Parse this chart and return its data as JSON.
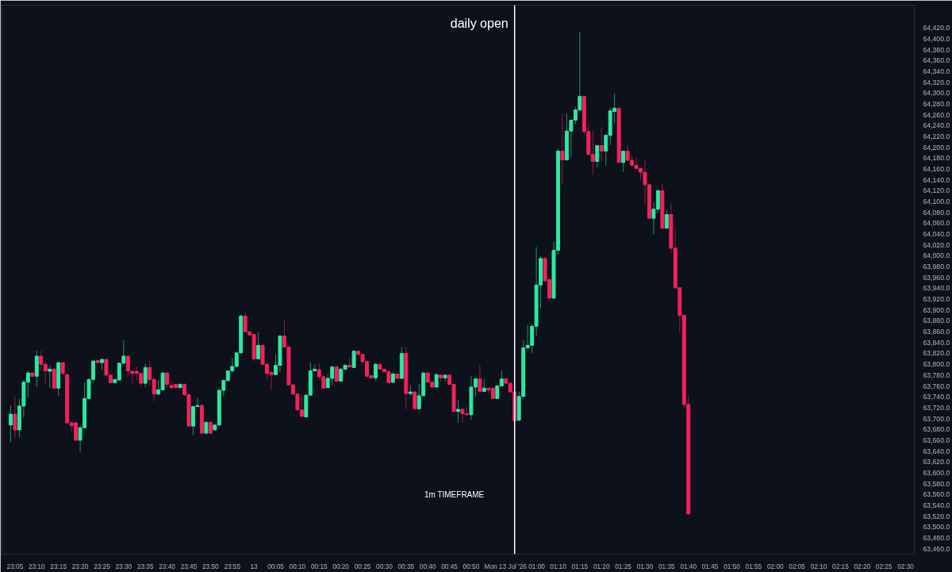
{
  "chart_data": {
    "type": "candlestick",
    "x": [
      "2026-07-12T23:04",
      "2026-07-12T23:05",
      "2026-07-12T23:06",
      "2026-07-12T23:07",
      "2026-07-12T23:08",
      "2026-07-12T23:09",
      "2026-07-12T23:10",
      "2026-07-12T23:11",
      "2026-07-12T23:12",
      "2026-07-12T23:13",
      "2026-07-12T23:14",
      "2026-07-12T23:15",
      "2026-07-12T23:16",
      "2026-07-12T23:17",
      "2026-07-12T23:18",
      "2026-07-12T23:19",
      "2026-07-12T23:20",
      "2026-07-12T23:21",
      "2026-07-12T23:22",
      "2026-07-12T23:23",
      "2026-07-12T23:24",
      "2026-07-12T23:25",
      "2026-07-12T23:26",
      "2026-07-12T23:27",
      "2026-07-12T23:28",
      "2026-07-12T23:29",
      "2026-07-12T23:30",
      "2026-07-12T23:31",
      "2026-07-12T23:32",
      "2026-07-12T23:33",
      "2026-07-12T23:34",
      "2026-07-12T23:35",
      "2026-07-12T23:36",
      "2026-07-12T23:37",
      "2026-07-12T23:38",
      "2026-07-12T23:39",
      "2026-07-12T23:40",
      "2026-07-12T23:41",
      "2026-07-12T23:42",
      "2026-07-12T23:43",
      "2026-07-12T23:44",
      "2026-07-12T23:45",
      "2026-07-12T23:46",
      "2026-07-12T23:47",
      "2026-07-12T23:48",
      "2026-07-12T23:49",
      "2026-07-12T23:50",
      "2026-07-12T23:51",
      "2026-07-12T23:52",
      "2026-07-12T23:53",
      "2026-07-12T23:54",
      "2026-07-12T23:55",
      "2026-07-12T23:56",
      "2026-07-12T23:57",
      "2026-07-12T23:58",
      "2026-07-12T23:59",
      "2026-07-13T00:00",
      "2026-07-13T00:01",
      "2026-07-13T00:02",
      "2026-07-13T00:03",
      "2026-07-13T00:04",
      "2026-07-13T00:05",
      "2026-07-13T00:06",
      "2026-07-13T00:07",
      "2026-07-13T00:08",
      "2026-07-13T00:09",
      "2026-07-13T00:10",
      "2026-07-13T00:11",
      "2026-07-13T00:12",
      "2026-07-13T00:13",
      "2026-07-13T00:14",
      "2026-07-13T00:15",
      "2026-07-13T00:16",
      "2026-07-13T00:17",
      "2026-07-13T00:18",
      "2026-07-13T00:19",
      "2026-07-13T00:20",
      "2026-07-13T00:21",
      "2026-07-13T00:22",
      "2026-07-13T00:23",
      "2026-07-13T00:24",
      "2026-07-13T00:25",
      "2026-07-13T00:26",
      "2026-07-13T00:27",
      "2026-07-13T00:28",
      "2026-07-13T00:29",
      "2026-07-13T00:30",
      "2026-07-13T00:31",
      "2026-07-13T00:32",
      "2026-07-13T00:33",
      "2026-07-13T00:34",
      "2026-07-13T00:35",
      "2026-07-13T00:36",
      "2026-07-13T00:37",
      "2026-07-13T00:38",
      "2026-07-13T00:39",
      "2026-07-13T00:40",
      "2026-07-13T00:41",
      "2026-07-13T00:42",
      "2026-07-13T00:43",
      "2026-07-13T00:44",
      "2026-07-13T00:45",
      "2026-07-13T00:46",
      "2026-07-13T00:47",
      "2026-07-13T00:48",
      "2026-07-13T00:49",
      "2026-07-13T00:50",
      "2026-07-13T00:51",
      "2026-07-13T00:52",
      "2026-07-13T00:53",
      "2026-07-13T00:54",
      "2026-07-13T00:55",
      "2026-07-13T00:56",
      "2026-07-13T00:57",
      "2026-07-13T00:58",
      "2026-07-13T00:59",
      "2026-07-13T01:00",
      "2026-07-13T01:01",
      "2026-07-13T01:02",
      "2026-07-13T01:03",
      "2026-07-13T01:04",
      "2026-07-13T01:05",
      "2026-07-13T01:06",
      "2026-07-13T01:07",
      "2026-07-13T01:08",
      "2026-07-13T01:09",
      "2026-07-13T01:10",
      "2026-07-13T01:11",
      "2026-07-13T01:12",
      "2026-07-13T01:13",
      "2026-07-13T01:14",
      "2026-07-13T01:15",
      "2026-07-13T01:16",
      "2026-07-13T01:17",
      "2026-07-13T01:18",
      "2026-07-13T01:19",
      "2026-07-13T01:20",
      "2026-07-13T01:21",
      "2026-07-13T01:22",
      "2026-07-13T01:23",
      "2026-07-13T01:24",
      "2026-07-13T01:25",
      "2026-07-13T01:26",
      "2026-07-13T01:27",
      "2026-07-13T01:28",
      "2026-07-13T01:29",
      "2026-07-13T01:30",
      "2026-07-13T01:31",
      "2026-07-13T01:32",
      "2026-07-13T01:33",
      "2026-07-13T01:34",
      "2026-07-13T01:35",
      "2026-07-13T01:36",
      "2026-07-13T01:37",
      "2026-07-13T01:38",
      "2026-07-13T01:39",
      "2026-07-13T01:40"
    ],
    "ohlc": [
      [
        63688,
        63724,
        63656,
        63708
      ],
      [
        63708,
        63741,
        63663,
        63679
      ],
      [
        63679,
        63736,
        63665,
        63723
      ],
      [
        63723,
        63771,
        63702,
        63767
      ],
      [
        63767,
        63788,
        63739,
        63784
      ],
      [
        63784,
        63785,
        63776,
        63778
      ],
      [
        63778,
        63825,
        63758,
        63815
      ],
      [
        63815,
        63825,
        63788,
        63800
      ],
      [
        63800,
        63803,
        63763,
        63788
      ],
      [
        63787,
        63798,
        63756,
        63791
      ],
      [
        63791,
        63793,
        63755,
        63756
      ],
      [
        63756,
        63804,
        63741,
        63803
      ],
      [
        63803,
        63804,
        63780,
        63783
      ],
      [
        63781,
        63783,
        63691,
        63692
      ],
      [
        63692,
        63695,
        63675,
        63687
      ],
      [
        63692,
        63693,
        63659,
        63660
      ],
      [
        63660,
        63687,
        63638,
        63683
      ],
      [
        63683,
        63766,
        63682,
        63737
      ],
      [
        63737,
        63773,
        63736,
        63772
      ],
      [
        63772,
        63807,
        63766,
        63806
      ],
      [
        63807,
        63808,
        63802,
        63803
      ],
      [
        63803,
        63810,
        63790,
        63809
      ],
      [
        63809,
        63810,
        63778,
        63780
      ],
      [
        63780,
        63781,
        63765,
        63766
      ],
      [
        63766,
        63773,
        63765,
        63772
      ],
      [
        63771,
        63803,
        63770,
        63802
      ],
      [
        63802,
        63844,
        63800,
        63815
      ],
      [
        63815,
        63816,
        63776,
        63788
      ],
      [
        63787,
        63787,
        63763,
        63783
      ],
      [
        63787,
        63796,
        63771,
        63783
      ],
      [
        63783,
        63785,
        63761,
        63765
      ],
      [
        63765,
        63801,
        63758,
        63794
      ],
      [
        63794,
        63806,
        63761,
        63772
      ],
      [
        63772,
        63775,
        63732,
        63745
      ],
      [
        63745,
        63771,
        63744,
        63753
      ],
      [
        63753,
        63785,
        63751,
        63784
      ],
      [
        63784,
        63785,
        63756,
        63763
      ],
      [
        63761,
        63767,
        63753,
        63757
      ],
      [
        63763,
        63764,
        63755,
        63757
      ],
      [
        63757,
        63765,
        63755,
        63763
      ],
      [
        63763,
        63765,
        63742,
        63744
      ],
      [
        63744,
        63746,
        63684,
        63686
      ],
      [
        63686,
        63723,
        63669,
        63722
      ],
      [
        63722,
        63739,
        63721,
        63724
      ],
      [
        63724,
        63727,
        63670,
        63673
      ],
      [
        63673,
        63695,
        63671,
        63693
      ],
      [
        63693,
        63695,
        63672,
        63673
      ],
      [
        63679,
        63689,
        63678,
        63688
      ],
      [
        63688,
        63756,
        63687,
        63752
      ],
      [
        63752,
        63772,
        63741,
        63770
      ],
      [
        63770,
        63789,
        63768,
        63788
      ],
      [
        63788,
        63812,
        63785,
        63796
      ],
      [
        63796,
        63822,
        63795,
        63821
      ],
      [
        63821,
        63892,
        63820,
        63889
      ],
      [
        63889,
        63896,
        63859,
        63860
      ],
      [
        63860,
        63861,
        63853,
        63854
      ],
      [
        63855,
        63856,
        63805,
        63810
      ],
      [
        63810,
        63860,
        63809,
        63835
      ],
      [
        63835,
        63836,
        63798,
        63800
      ],
      [
        63800,
        63803,
        63771,
        63783
      ],
      [
        63785,
        63788,
        63753,
        63781
      ],
      [
        63781,
        63819,
        63780,
        63798
      ],
      [
        63798,
        63854,
        63785,
        63852
      ],
      [
        63852,
        63883,
        63829,
        63832
      ],
      [
        63832,
        63833,
        63761,
        63762
      ],
      [
        63762,
        63763,
        63744,
        63745
      ],
      [
        63745,
        63746,
        63715,
        63716
      ],
      [
        63716,
        63745,
        63703,
        63704
      ],
      [
        63703,
        63745,
        63702,
        63743
      ],
      [
        63743,
        63804,
        63743,
        63788
      ],
      [
        63788,
        63800,
        63787,
        63791
      ],
      [
        63790,
        63802,
        63771,
        63777
      ],
      [
        63777,
        63780,
        63755,
        63756
      ],
      [
        63757,
        63781,
        63756,
        63774
      ],
      [
        63774,
        63798,
        63762,
        63795
      ],
      [
        63795,
        63798,
        63767,
        63769
      ],
      [
        63769,
        63793,
        63768,
        63791
      ],
      [
        63791,
        63801,
        63790,
        63798
      ],
      [
        63798,
        63811,
        63794,
        63795
      ],
      [
        63794,
        63826,
        63793,
        63824
      ],
      [
        63824,
        63826,
        63817,
        63818
      ],
      [
        63818,
        63820,
        63798,
        63805
      ],
      [
        63805,
        63807,
        63776,
        63778
      ],
      [
        63779,
        63780,
        63774,
        63775
      ],
      [
        63775,
        63802,
        63770,
        63800
      ],
      [
        63800,
        63802,
        63790,
        63791
      ],
      [
        63791,
        63792,
        63785,
        63786
      ],
      [
        63786,
        63790,
        63765,
        63766
      ],
      [
        63767,
        63785,
        63765,
        63782
      ],
      [
        63782,
        63783,
        63773,
        63774
      ],
      [
        63774,
        63832,
        63773,
        63820
      ],
      [
        63820,
        63832,
        63717,
        63746
      ],
      [
        63746,
        63761,
        63741,
        63749
      ],
      [
        63749,
        63751,
        63717,
        63718
      ],
      [
        63718,
        63763,
        63717,
        63742
      ],
      [
        63742,
        63786,
        63741,
        63784
      ],
      [
        63784,
        63786,
        63765,
        63767
      ],
      [
        63767,
        63769,
        63757,
        63758
      ],
      [
        63758,
        63783,
        63757,
        63781
      ],
      [
        63780,
        63781,
        63768,
        63775
      ],
      [
        63775,
        63781,
        63768,
        63780
      ],
      [
        63780,
        63781,
        63762,
        63763
      ],
      [
        63763,
        63765,
        63712,
        63713
      ],
      [
        63713,
        63734,
        63692,
        63717
      ],
      [
        63717,
        63719,
        63692,
        63709
      ],
      [
        63709,
        63722,
        63706,
        63707
      ],
      [
        63707,
        63778,
        63698,
        63758
      ],
      [
        63758,
        63775,
        63741,
        63773
      ],
      [
        63773,
        63798,
        63749,
        63750
      ],
      [
        63750,
        63773,
        63749,
        63756
      ],
      [
        63756,
        63756,
        63747,
        63753
      ],
      [
        63756,
        63757,
        63735,
        63737
      ],
      [
        63737,
        63762,
        63736,
        63760
      ],
      [
        63760,
        63789,
        63759,
        63773
      ],
      [
        63773,
        63775,
        63764,
        63765
      ],
      [
        63765,
        63767,
        63748,
        63749
      ],
      [
        63749,
        63750,
        63690,
        63696
      ],
      [
        63697,
        63750,
        63695,
        63741
      ],
      [
        63741,
        63844,
        63736,
        63830
      ],
      [
        63830,
        63873,
        63829,
        63835
      ],
      [
        63835,
        63874,
        63821,
        63870
      ],
      [
        63870,
        64016,
        63852,
        63946
      ],
      [
        63946,
        63999,
        63903,
        63995
      ],
      [
        63995,
        63998,
        63951,
        63954
      ],
      [
        63956,
        63958,
        63917,
        63922
      ],
      [
        63922,
        64026,
        63920,
        64010
      ],
      [
        64010,
        64197,
        64002,
        64193
      ],
      [
        64193,
        64261,
        64131,
        64177
      ],
      [
        64177,
        64262,
        64175,
        64230
      ],
      [
        64230,
        64251,
        64182,
        64250
      ],
      [
        64250,
        64275,
        64242,
        64269
      ],
      [
        64269,
        64413,
        64268,
        64294
      ],
      [
        64294,
        64295,
        64224,
        64229
      ],
      [
        64229,
        64242,
        64185,
        64187
      ],
      [
        64187,
        64231,
        64149,
        64174
      ],
      [
        64174,
        64204,
        64163,
        64203
      ],
      [
        64203,
        64237,
        64174,
        64193
      ],
      [
        64193,
        64224,
        64165,
        64222
      ],
      [
        64222,
        64273,
        64204,
        64267
      ],
      [
        64266,
        64300,
        64244,
        64272
      ],
      [
        64272,
        64273,
        64171,
        64172
      ],
      [
        64172,
        64194,
        64155,
        64193
      ],
      [
        64193,
        64204,
        64175,
        64176
      ],
      [
        64176,
        64185,
        64165,
        64167
      ],
      [
        64167,
        64181,
        64160,
        64161
      ],
      [
        64161,
        64163,
        64141,
        64154
      ],
      [
        64154,
        64178,
        64094,
        64131
      ],
      [
        64131,
        64132,
        64068,
        64069
      ],
      [
        64069,
        64099,
        64039,
        64086
      ],
      [
        64086,
        64121,
        64079,
        64120
      ],
      [
        64120,
        64133,
        64049,
        64051
      ],
      [
        64051,
        64084,
        64049,
        64076
      ],
      [
        64076,
        64097,
        64005,
        64014
      ],
      [
        64014,
        64049,
        63939,
        63941
      ],
      [
        63941,
        63942,
        63858,
        63890
      ],
      [
        63890,
        63892,
        63721,
        63726
      ],
      [
        63726,
        63742,
        63523,
        63524
      ]
    ],
    "xlim": [
      "2026-07-12T23:02",
      "2026-07-13T02:32"
    ],
    "xticks": [
      {
        "value": "2026-07-12T23:05",
        "label": "23:05"
      },
      {
        "value": "2026-07-12T23:10",
        "label": "23:10"
      },
      {
        "value": "2026-07-12T23:15",
        "label": "23:15"
      },
      {
        "value": "2026-07-12T23:20",
        "label": "23:20"
      },
      {
        "value": "2026-07-12T23:25",
        "label": "23:25"
      },
      {
        "value": "2026-07-12T23:30",
        "label": "23:30"
      },
      {
        "value": "2026-07-12T23:35",
        "label": "23:35"
      },
      {
        "value": "2026-07-12T23:40",
        "label": "23:40"
      },
      {
        "value": "2026-07-12T23:45",
        "label": "23:45"
      },
      {
        "value": "2026-07-12T23:50",
        "label": "23:50"
      },
      {
        "value": "2026-07-12T23:55",
        "label": "23:55"
      },
      {
        "value": "2026-07-13T00:00",
        "label": "13"
      },
      {
        "value": "2026-07-13T00:05",
        "label": "00:05"
      },
      {
        "value": "2026-07-13T00:10",
        "label": "00:10"
      },
      {
        "value": "2026-07-13T00:15",
        "label": "00:15"
      },
      {
        "value": "2026-07-13T00:20",
        "label": "00:20"
      },
      {
        "value": "2026-07-13T00:25",
        "label": "00:25"
      },
      {
        "value": "2026-07-13T00:30",
        "label": "00:30"
      },
      {
        "value": "2026-07-13T00:35",
        "label": "00:35"
      },
      {
        "value": "2026-07-13T00:40",
        "label": "00:40"
      },
      {
        "value": "2026-07-13T00:45",
        "label": "00:45"
      },
      {
        "value": "2026-07-13T00:50",
        "label": "00:50"
      },
      {
        "value": "2026-07-13T01:00",
        "label": "Mon 13 Jul '26 01:00"
      },
      {
        "value": "2026-07-13T01:10",
        "label": "01:10"
      },
      {
        "value": "2026-07-13T01:15",
        "label": "01:15"
      },
      {
        "value": "2026-07-13T01:20",
        "label": "01:20"
      },
      {
        "value": "2026-07-13T01:25",
        "label": "01:25"
      },
      {
        "value": "2026-07-13T01:30",
        "label": "01:30"
      },
      {
        "value": "2026-07-13T01:35",
        "label": "01:35"
      },
      {
        "value": "2026-07-13T01:40",
        "label": "01:40"
      },
      {
        "value": "2026-07-13T01:45",
        "label": "01:45"
      },
      {
        "value": "2026-07-13T01:50",
        "label": "01:50"
      },
      {
        "value": "2026-07-13T01:55",
        "label": "01:55"
      },
      {
        "value": "2026-07-13T02:00",
        "label": "02:00"
      },
      {
        "value": "2026-07-13T02:05",
        "label": "02:05"
      },
      {
        "value": "2026-07-13T02:10",
        "label": "02:10"
      },
      {
        "value": "2026-07-13T02:15",
        "label": "02:15"
      },
      {
        "value": "2026-07-13T02:20",
        "label": "02:20"
      },
      {
        "value": "2026-07-13T02:25",
        "label": "02:25"
      },
      {
        "value": "2026-07-13T02:30",
        "label": "02:30"
      }
    ],
    "ylim": [
      63450,
      64462
    ],
    "yticks": [
      {
        "value": 63460,
        "label": "63,460.0"
      },
      {
        "value": 63480,
        "label": "63,480.0"
      },
      {
        "value": 63500,
        "label": "63,500.0"
      },
      {
        "value": 63520,
        "label": "63,520.0"
      },
      {
        "value": 63540,
        "label": "63,540.0"
      },
      {
        "value": 63560,
        "label": "63,560.0"
      },
      {
        "value": 63580,
        "label": "63,580.0"
      },
      {
        "value": 63600,
        "label": "63,600.0"
      },
      {
        "value": 63620,
        "label": "63,620.0"
      },
      {
        "value": 63640,
        "label": "63,640.0"
      },
      {
        "value": 63660,
        "label": "63,660.0"
      },
      {
        "value": 63680,
        "label": "63,680.0"
      },
      {
        "value": 63700,
        "label": "63,700.0"
      },
      {
        "value": 63720,
        "label": "63,720.0"
      },
      {
        "value": 63740,
        "label": "63,740.0"
      },
      {
        "value": 63760,
        "label": "63,760.0"
      },
      {
        "value": 63780,
        "label": "63,780.0"
      },
      {
        "value": 63800,
        "label": "63,800.0"
      },
      {
        "value": 63820,
        "label": "63,820.0"
      },
      {
        "value": 63840,
        "label": "63,840.0"
      },
      {
        "value": 63860,
        "label": "63,860.0"
      },
      {
        "value": 63880,
        "label": "63,880.0"
      },
      {
        "value": 63900,
        "label": "63,900.0"
      },
      {
        "value": 63920,
        "label": "63,920.0"
      },
      {
        "value": 63940,
        "label": "63,940.0"
      },
      {
        "value": 63960,
        "label": "63,960.0"
      },
      {
        "value": 63980,
        "label": "63,980.0"
      },
      {
        "value": 64000,
        "label": "64,000.0"
      },
      {
        "value": 64020,
        "label": "64,020.0"
      },
      {
        "value": 64040,
        "label": "64,040.0"
      },
      {
        "value": 64060,
        "label": "64,060.0"
      },
      {
        "value": 64080,
        "label": "64,080.0"
      },
      {
        "value": 64100,
        "label": "64,100.0"
      },
      {
        "value": 64120,
        "label": "64,120.0"
      },
      {
        "value": 64140,
        "label": "64,140.0"
      },
      {
        "value": 64160,
        "label": "64,160.0"
      },
      {
        "value": 64180,
        "label": "64,180.0"
      },
      {
        "value": 64200,
        "label": "64,200.0"
      },
      {
        "value": 64220,
        "label": "64,220.0"
      },
      {
        "value": 64240,
        "label": "64,240.0"
      },
      {
        "value": 64260,
        "label": "64,260.0"
      },
      {
        "value": 64280,
        "label": "64,280.0"
      },
      {
        "value": 64300,
        "label": "64,300.0"
      },
      {
        "value": 64320,
        "label": "64,320.0"
      },
      {
        "value": 64340,
        "label": "64,340.0"
      },
      {
        "value": 64360,
        "label": "64,360.0"
      },
      {
        "value": 64380,
        "label": "64,380.0"
      },
      {
        "value": 64400,
        "label": "64,400.0"
      },
      {
        "value": 64420,
        "label": "64,420.0"
      }
    ],
    "ref_lines": [
      {
        "axis": "x",
        "value": "2026-07-13T01:00",
        "label": "daily open",
        "color": "#ffffff"
      }
    ],
    "annotations": [
      "1m TIMEFRAME"
    ],
    "grid": false
  }
}
